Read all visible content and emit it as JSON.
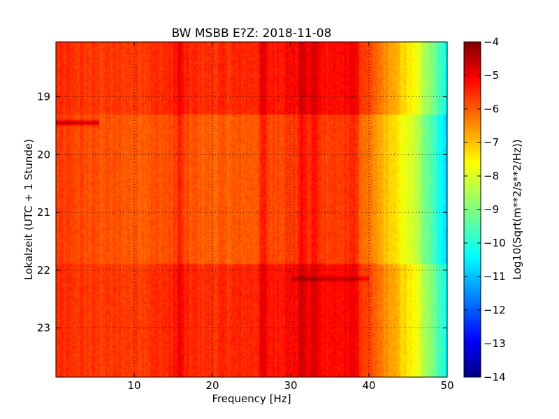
{
  "chart_data": {
    "type": "heatmap",
    "title": "BW MSBB E?Z: 2018-11-08",
    "xlabel": "Frequency [Hz]",
    "ylabel": "Lokalzeit (UTC + 1 Stunde)",
    "xlim": [
      0,
      50
    ],
    "ylim": [
      18.05,
      23.85
    ],
    "x_ticks": [
      10,
      20,
      30,
      40,
      50
    ],
    "y_ticks": [
      19,
      20,
      21,
      22,
      23
    ],
    "grid": true,
    "colorbar": {
      "label": "Log10(Sqrt(m**2/s**2/Hz))",
      "min": -14,
      "max": -4,
      "ticks": [
        -4,
        -5,
        -6,
        -7,
        -8,
        -9,
        -10,
        -11,
        -12,
        -13,
        -14
      ],
      "colormap": "jet"
    },
    "baseline_profile": {
      "frequency_hz": [
        0,
        5,
        10,
        15,
        20,
        25,
        30,
        35,
        38,
        40,
        42,
        44,
        46,
        48,
        50
      ],
      "log10_amplitude": [
        -5.7,
        -5.8,
        -5.8,
        -5.6,
        -5.7,
        -5.6,
        -5.3,
        -5.3,
        -5.4,
        -6.0,
        -6.6,
        -7.2,
        -7.9,
        -8.9,
        -10.2
      ]
    },
    "time_segments": [
      {
        "start_hour": 18.05,
        "end_hour": 19.3,
        "offset": 0.0
      },
      {
        "start_hour": 19.3,
        "end_hour": 21.9,
        "offset": -0.5
      },
      {
        "start_hour": 21.9,
        "end_hour": 23.85,
        "offset": 0.0
      }
    ],
    "persistent_lines": [
      {
        "frequency_hz": 15.8,
        "strength": 0.9
      },
      {
        "frequency_hz": 26.5,
        "strength": 0.9
      },
      {
        "frequency_hz": 31.5,
        "strength": 1.0
      },
      {
        "frequency_hz": 33.0,
        "strength": 0.8
      },
      {
        "frequency_hz": 38.0,
        "strength": 0.8
      }
    ],
    "bursts": [
      {
        "hour": 19.45,
        "freq_start": 0.0,
        "freq_end": 5.5,
        "strength": 1.2
      },
      {
        "hour": 22.15,
        "freq_start": 30.0,
        "freq_end": 40.0,
        "strength": 0.7
      }
    ]
  }
}
